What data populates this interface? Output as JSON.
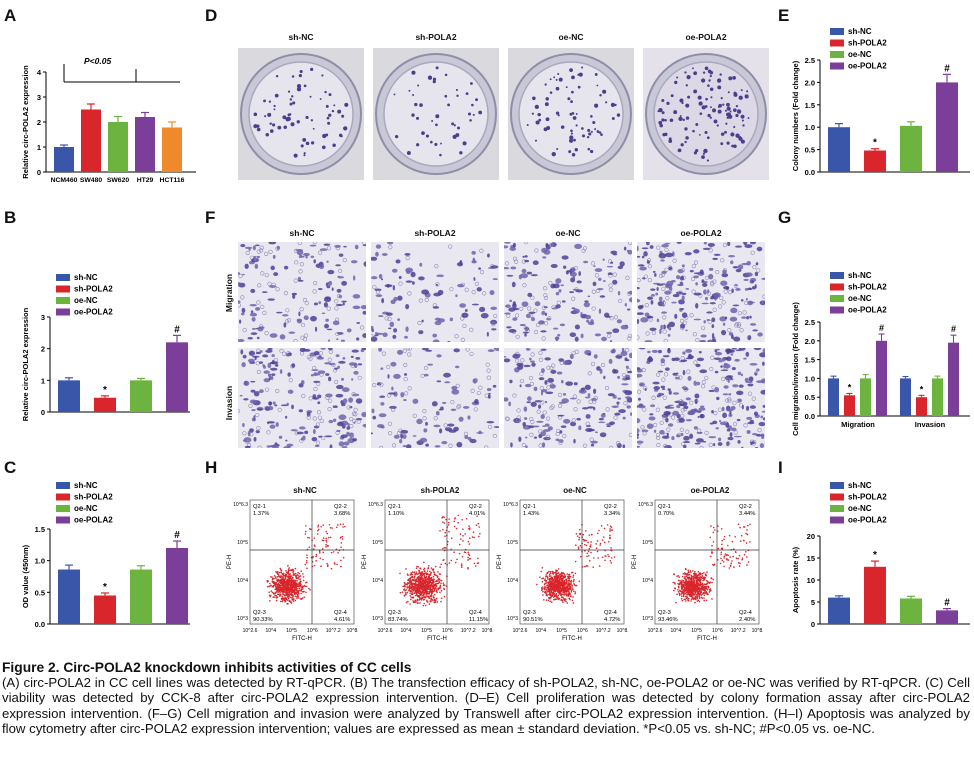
{
  "panel_labels": {
    "A": "A",
    "B": "B",
    "C": "C",
    "D": "D",
    "E": "E",
    "F": "F",
    "G": "G",
    "H": "H",
    "I": "I"
  },
  "colors": {
    "sh_nc": "#3a56a8",
    "sh_pola2": "#d8262c",
    "oe_nc": "#6cb43f",
    "oe_pola2": "#7c3f99",
    "hct116": "#ef8a2c"
  },
  "legend_labels": [
    "sh-NC",
    "sh-POLA2",
    "oe-NC",
    "oe-POLA2"
  ],
  "panel_d": {
    "titles": [
      "sh-NC",
      "sh-POLA2",
      "oe-NC",
      "oe-POLA2"
    ]
  },
  "panel_f": {
    "titles": [
      "sh-NC",
      "sh-POLA2",
      "oe-NC",
      "oe-POLA2"
    ],
    "row_labels": [
      "Migration",
      "Invasion"
    ]
  },
  "panel_h": {
    "titles": [
      "sh-NC",
      "sh-POLA2",
      "oe-NC",
      "oe-POLA2"
    ],
    "ylabel": "PE-H",
    "xlabel": "FITC-H",
    "quadrants": [
      {
        "q1": "Q2-1",
        "q1v": "1.37%",
        "q2": "Q2-2",
        "q2v": "3.68%",
        "q3": "Q2-3",
        "q3v": "90.33%",
        "q4": "Q2-4",
        "q4v": "4.61%"
      },
      {
        "q1": "Q2-1",
        "q1v": "1.10%",
        "q2": "Q2-2",
        "q2v": "4.01%",
        "q3": "Q2-3",
        "q3v": "83.74%",
        "q4": "Q2-4",
        "q4v": "11.15%"
      },
      {
        "q1": "Q2-1",
        "q1v": "1.43%",
        "q2": "Q2-2",
        "q2v": "3.34%",
        "q3": "Q2-3",
        "q3v": "90.51%",
        "q4": "Q2-4",
        "q4v": "4.72%"
      },
      {
        "q1": "Q2-1",
        "q1v": "0.70%",
        "q2": "Q2-2",
        "q2v": "3.44%",
        "q3": "Q2-3",
        "q3v": "93.46%",
        "q4": "Q2-4",
        "q4v": "2.40%"
      }
    ],
    "x_ticks": [
      "10^2.6",
      "10^4",
      "10^5",
      "10^6",
      "10^7.2",
      "10^8.6"
    ],
    "y_ticks": [
      "10^6.3",
      "10^5",
      "10^4",
      "10^3"
    ]
  },
  "caption": {
    "title": "Figure 2. Circ-POLA2 knockdown inhibits activities of CC cells",
    "body": "(A) circ-POLA2 in CC cell lines was detected by RT-qPCR. (B) The transfection efficacy of sh-POLA2, sh-NC, oe-POLA2 or oe-NC was verified by RT-qPCR. (C) Cell viability was detected by CCK-8 after circ-POLA2 expression intervention. (D–E) Cell proliferation was detected by colony formation assay after circ-POLA2 expression intervention. (F–G) Cell migration and invasion were analyzed by Transwell after circ-POLA2 expression intervention. (H–I) Apoptosis was analyzed by flow cytometry after circ-POLA2 expression intervention; values are expressed as mean ± standard deviation. *P<0.05 vs. sh-NC; #P<0.05 vs. oe-NC."
  },
  "chart_data": [
    {
      "id": "A",
      "type": "bar",
      "categories": [
        "NCM460",
        "SW480",
        "SW620",
        "HT29",
        "HCT116"
      ],
      "values": [
        1.0,
        2.5,
        2.0,
        2.2,
        1.78
      ],
      "errors": [
        0.08,
        0.22,
        0.22,
        0.18,
        0.22
      ],
      "colors": [
        "#3a56a8",
        "#d8262c",
        "#6cb43f",
        "#7c3f99",
        "#ef8a2c"
      ],
      "ylabel": "Relative circ-POLA2 expression",
      "ylim": [
        0,
        4
      ],
      "yticks": [
        "0",
        "1",
        "2",
        "3",
        "4"
      ],
      "annotation": "P<0.05"
    },
    {
      "id": "B",
      "type": "bar",
      "categories": [
        "sh-NC",
        "sh-POLA2",
        "oe-NC",
        "oe-POLA2"
      ],
      "values": [
        1.0,
        0.45,
        1.0,
        2.2
      ],
      "errors": [
        0.08,
        0.06,
        0.06,
        0.22
      ],
      "marks": [
        "",
        "*",
        "",
        "#"
      ],
      "colors": [
        "#3a56a8",
        "#d8262c",
        "#6cb43f",
        "#7c3f99"
      ],
      "ylabel": "Relative circ-POLA2 expression",
      "ylim": [
        0,
        3
      ],
      "yticks": [
        "0",
        "1",
        "2",
        "3"
      ]
    },
    {
      "id": "C",
      "type": "bar",
      "categories": [
        "sh-NC",
        "sh-POLA2",
        "oe-NC",
        "oe-POLA2"
      ],
      "values": [
        0.86,
        0.45,
        0.86,
        1.2
      ],
      "errors": [
        0.07,
        0.04,
        0.06,
        0.11
      ],
      "marks": [
        "",
        "*",
        "",
        "#"
      ],
      "colors": [
        "#3a56a8",
        "#d8262c",
        "#6cb43f",
        "#7c3f99"
      ],
      "ylabel": "OD value (450nm)",
      "ylim": [
        0,
        1.5
      ],
      "yticks": [
        "0.0",
        "0.5",
        "1.0",
        "1.5"
      ]
    },
    {
      "id": "E",
      "type": "bar",
      "categories": [
        "sh-NC",
        "sh-POLA2",
        "oe-NC",
        "oe-POLA2"
      ],
      "values": [
        1.0,
        0.48,
        1.03,
        2.0
      ],
      "errors": [
        0.08,
        0.04,
        0.09,
        0.18
      ],
      "marks": [
        "",
        "*",
        "",
        "#"
      ],
      "colors": [
        "#3a56a8",
        "#d8262c",
        "#6cb43f",
        "#7c3f99"
      ],
      "ylabel": "Colony numbers (Fold change)",
      "ylim": [
        0,
        2.5
      ],
      "yticks": [
        "0.0",
        "0.5",
        "1.0",
        "1.5",
        "2.0",
        "2.5"
      ]
    },
    {
      "id": "G",
      "type": "bar",
      "categories": [
        "Migration",
        "Invasion"
      ],
      "series": [
        {
          "name": "sh-NC",
          "values": [
            1.0,
            1.0
          ],
          "errors": [
            0.06,
            0.05
          ],
          "marks": [
            "",
            ""
          ]
        },
        {
          "name": "sh-POLA2",
          "values": [
            0.55,
            0.5
          ],
          "errors": [
            0.05,
            0.05
          ],
          "marks": [
            "*",
            "*"
          ]
        },
        {
          "name": "oe-NC",
          "values": [
            1.0,
            1.0
          ],
          "errors": [
            0.1,
            0.06
          ],
          "marks": [
            "",
            ""
          ]
        },
        {
          "name": "oe-POLA2",
          "values": [
            2.0,
            1.95
          ],
          "errors": [
            0.18,
            0.2
          ],
          "marks": [
            "#",
            "#"
          ]
        }
      ],
      "colors": [
        "#3a56a8",
        "#d8262c",
        "#6cb43f",
        "#7c3f99"
      ],
      "ylabel": "Cell migration/invasion (Fold change)",
      "ylim": [
        0,
        2.5
      ],
      "yticks": [
        "0.0",
        "0.5",
        "1.0",
        "1.5",
        "2.0",
        "2.5"
      ]
    },
    {
      "id": "I",
      "type": "bar",
      "categories": [
        "sh-NC",
        "sh-POLA2",
        "oe-NC",
        "oe-POLA2"
      ],
      "values": [
        6.0,
        13.0,
        5.8,
        3.1
      ],
      "errors": [
        0.4,
        1.3,
        0.5,
        0.4
      ],
      "marks": [
        "",
        "*",
        "",
        "#"
      ],
      "colors": [
        "#3a56a8",
        "#d8262c",
        "#6cb43f",
        "#7c3f99"
      ],
      "ylabel": "Apoptosis rate (%)",
      "ylim": [
        0,
        20
      ],
      "yticks": [
        "0",
        "5",
        "10",
        "15",
        "20"
      ]
    }
  ]
}
